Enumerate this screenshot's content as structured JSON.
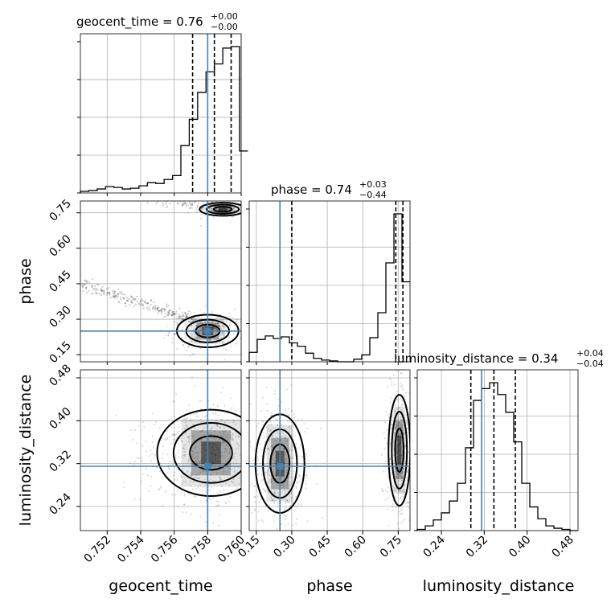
{
  "chart_data": {
    "type": "corner",
    "parameters": [
      "geocent_time",
      "phase",
      "luminosity_distance"
    ],
    "axis_labels": {
      "geocent_time": "geocent_time",
      "phase": "phase",
      "luminosity_distance": "luminosity_distance"
    },
    "truth": {
      "geocent_time": 0.758,
      "phase": 0.25,
      "luminosity_distance": 0.315
    },
    "truth_color": "#4682b4",
    "ranges": {
      "geocent_time": [
        0.7504,
        0.76
      ],
      "phase": [
        0.12,
        0.8
      ],
      "luminosity_distance": [
        0.195,
        0.495
      ]
    },
    "ticks": {
      "geocent_time": [
        "0.752",
        "0.754",
        "0.756",
        "0.758",
        "0.760"
      ],
      "phase": [
        "0.15",
        "0.30",
        "0.45",
        "0.60",
        "0.75"
      ],
      "luminosity_distance": [
        "0.24",
        "0.32",
        "0.40",
        "0.48"
      ]
    },
    "titles": [
      {
        "param": "geocent_time",
        "name": "geocent_time",
        "median": "0.76",
        "plus": "+0.00",
        "minus": "−0.00"
      },
      {
        "param": "phase",
        "name": "phase",
        "median": "0.74",
        "plus": "+0.03",
        "minus": "−0.44"
      },
      {
        "param": "luminosity_distance",
        "name": "luminosity_distance",
        "median": "0.34",
        "plus": "+0.04",
        "minus": "−0.04"
      }
    ],
    "quantiles": {
      "geocent_time": [
        0.7571,
        0.7584,
        0.7594
      ],
      "phase": [
        0.3,
        0.74,
        0.77
      ],
      "luminosity_distance": [
        0.295,
        0.338,
        0.378
      ]
    },
    "histograms": {
      "geocent_time": {
        "edges": [
          0.7504,
          0.7509,
          0.7514,
          0.7519,
          0.7524,
          0.7529,
          0.7534,
          0.7539,
          0.7544,
          0.7549,
          0.7554,
          0.7559,
          0.7564,
          0.7569,
          0.7574,
          0.7579,
          0.7584,
          0.7589,
          0.7594,
          0.7599,
          0.7604
        ],
        "counts": [
          2,
          3,
          5,
          8,
          7,
          5,
          6,
          9,
          13,
          12,
          17,
          22,
          60,
          93,
          127,
          153,
          163,
          183,
          185,
          53
        ]
      },
      "phase": {
        "edges": [
          0.12,
          0.154,
          0.188,
          0.222,
          0.256,
          0.29,
          0.324,
          0.358,
          0.392,
          0.426,
          0.46,
          0.494,
          0.528,
          0.562,
          0.596,
          0.63,
          0.664,
          0.698,
          0.732,
          0.766,
          0.8
        ],
        "counts": [
          11,
          26,
          30,
          27,
          29,
          22,
          18,
          10,
          4,
          2,
          1,
          0,
          0,
          3,
          8,
          28,
          57,
          115,
          172,
          93
        ]
      },
      "luminosity_distance": {
        "edges": [
          0.195,
          0.21,
          0.225,
          0.24,
          0.255,
          0.27,
          0.285,
          0.3,
          0.315,
          0.33,
          0.345,
          0.36,
          0.375,
          0.39,
          0.405,
          0.42,
          0.435,
          0.45,
          0.465,
          0.48,
          0.495
        ],
        "counts": [
          1,
          4,
          9,
          15,
          25,
          40,
          70,
          110,
          120,
          125,
          115,
          100,
          75,
          40,
          20,
          10,
          4,
          2,
          1,
          0
        ]
      }
    },
    "clusters_2d": {
      "phase_vs_geocent_time": [
        {
          "x": 0.7589,
          "y": 0.765,
          "sx": 0.0006,
          "sy": 0.012,
          "n": 260
        },
        {
          "x": 0.758,
          "y": 0.25,
          "sx": 0.0008,
          "sy": 0.03,
          "n": 220
        }
      ],
      "phase_streaks": [
        {
          "x0": 0.7505,
          "y0": 0.45,
          "x1": 0.759,
          "y1": 0.25,
          "n": 300
        },
        {
          "x0": 0.754,
          "y0": 0.82,
          "x1": 0.759,
          "y1": 0.77,
          "n": 90
        }
      ],
      "luminosity_distance_vs_geocent_time": [
        {
          "x": 0.7582,
          "y": 0.34,
          "sx": 0.0014,
          "sy": 0.035,
          "n": 700
        }
      ],
      "luminosity_distance_vs_phase": [
        {
          "x": 0.25,
          "y": 0.32,
          "sx": 0.045,
          "sy": 0.04,
          "n": 380
        },
        {
          "x": 0.755,
          "y": 0.345,
          "sx": 0.02,
          "sy": 0.045,
          "n": 520
        }
      ]
    }
  }
}
